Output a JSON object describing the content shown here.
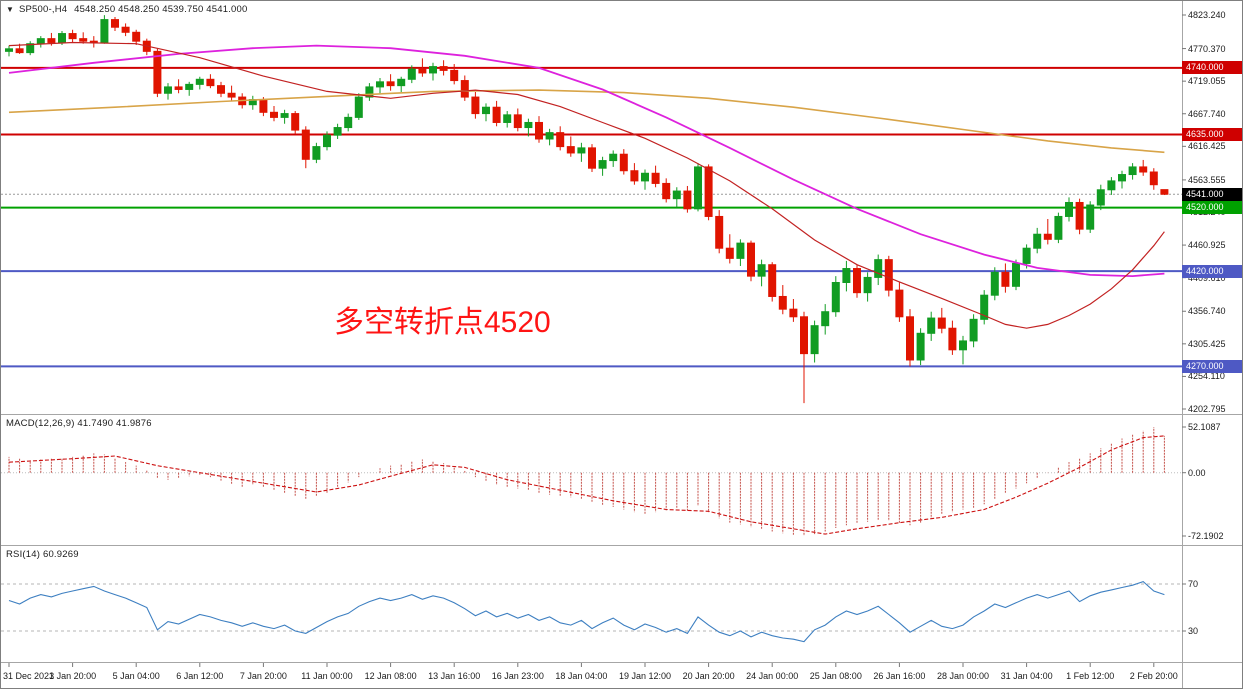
{
  "window": {
    "symbol_period": "SP500-,H4",
    "quote": "4548.250 4548.250 4539.750 4541.000"
  },
  "icons": {
    "marker": "▼"
  },
  "main_chart": {
    "y_ticks": [
      "4823.240",
      "4770.370",
      "4719.055",
      "4667.740",
      "4616.425",
      "4563.555",
      "4512.240",
      "4460.925",
      "4409.610",
      "4356.740",
      "4305.425",
      "4254.110",
      "4202.795"
    ],
    "price_lines": [
      {
        "price": 4740.0,
        "label": "4740.000",
        "color": "#cf0000"
      },
      {
        "price": 4635.0,
        "label": "4635.000",
        "color": "#cf0000"
      },
      {
        "price": 4520.0,
        "label": "4520.000",
        "color": "#00a100"
      },
      {
        "price": 4420.0,
        "label": "4420.000",
        "color": "#4e59c4"
      },
      {
        "price": 4270.0,
        "label": "4270.000",
        "color": "#4e59c4"
      }
    ],
    "current_price": {
      "value": 4541.0,
      "label": "4541.000",
      "badge_bg": "#000000",
      "line_color": "#9a9a9a"
    },
    "annotation": {
      "text": "多空转折点4520",
      "color": "#ff1414"
    }
  },
  "macd_panel": {
    "header": "MACD(12,26,9) 41.7490 41.9876",
    "ticks": [
      {
        "v": 52.1087,
        "label": "52.1087"
      },
      {
        "v": 0,
        "label": "0.00"
      },
      {
        "v": -72.1902,
        "label": "-72.1902"
      }
    ],
    "hist_color": "#c4504a",
    "signal_color": "#cc1111"
  },
  "rsi_panel": {
    "header": "RSI(14) 60.9269",
    "levels": [
      {
        "v": 70,
        "label": "70"
      },
      {
        "v": 30,
        "label": "30"
      }
    ],
    "line_color": "#3d7fc1"
  },
  "chart_data": {
    "type": "candlestick",
    "symbol": "SP500-",
    "timeframe": "H4",
    "title": "SP500-,H4 4548.250 4548.250 4539.750 4541.000",
    "current_ohlc": {
      "open": 4548.25,
      "high": 4548.25,
      "low": 4539.75,
      "close": 4541.0
    },
    "y_range": [
      4202.795,
      4823.24
    ],
    "up_color": "#119c22",
    "down_color": "#e01400",
    "x_labels": [
      "31 Dec 2021",
      "3 Jan 20:00",
      "5 Jan 04:00",
      "6 Jan 12:00",
      "7 Jan 20:00",
      "11 Jan 00:00",
      "12 Jan 08:00",
      "13 Jan 16:00",
      "16 Jan 23:00",
      "18 Jan 04:00",
      "19 Jan 12:00",
      "20 Jan 20:00",
      "24 Jan 00:00",
      "25 Jan 08:00",
      "26 Jan 16:00",
      "28 Jan 00:00",
      "31 Jan 04:00",
      "1 Feb 12:00",
      "2 Feb 20:00"
    ],
    "x_label_indices": [
      0,
      6,
      12,
      18,
      24,
      30,
      36,
      42,
      48,
      54,
      60,
      66,
      72,
      78,
      84,
      90,
      96,
      102,
      108
    ],
    "candles": [
      [
        4766,
        4775,
        4758,
        4770
      ],
      [
        4770,
        4778,
        4762,
        4764
      ],
      [
        4764,
        4782,
        4760,
        4778
      ],
      [
        4778,
        4790,
        4772,
        4786
      ],
      [
        4786,
        4795,
        4775,
        4780
      ],
      [
        4780,
        4798,
        4776,
        4794
      ],
      [
        4794,
        4800,
        4780,
        4786
      ],
      [
        4786,
        4796,
        4778,
        4782
      ],
      [
        4782,
        4790,
        4772,
        4780
      ],
      [
        4780,
        4823,
        4778,
        4816
      ],
      [
        4816,
        4820,
        4798,
        4804
      ],
      [
        4804,
        4810,
        4790,
        4796
      ],
      [
        4796,
        4800,
        4776,
        4782
      ],
      [
        4782,
        4786,
        4760,
        4766
      ],
      [
        4766,
        4770,
        4694,
        4700
      ],
      [
        4700,
        4716,
        4690,
        4710
      ],
      [
        4710,
        4722,
        4700,
        4706
      ],
      [
        4706,
        4718,
        4696,
        4714
      ],
      [
        4714,
        4726,
        4706,
        4722
      ],
      [
        4722,
        4730,
        4708,
        4712
      ],
      [
        4712,
        4718,
        4694,
        4700
      ],
      [
        4700,
        4712,
        4688,
        4694
      ],
      [
        4694,
        4700,
        4676,
        4682
      ],
      [
        4682,
        4696,
        4674,
        4690
      ],
      [
        4690,
        4694,
        4664,
        4670
      ],
      [
        4670,
        4680,
        4656,
        4662
      ],
      [
        4662,
        4674,
        4652,
        4668
      ],
      [
        4668,
        4672,
        4636,
        4642
      ],
      [
        4642,
        4648,
        4582,
        4596
      ],
      [
        4596,
        4622,
        4590,
        4616
      ],
      [
        4616,
        4640,
        4610,
        4634
      ],
      [
        4634,
        4652,
        4628,
        4646
      ],
      [
        4646,
        4668,
        4640,
        4662
      ],
      [
        4662,
        4700,
        4658,
        4694
      ],
      [
        4694,
        4716,
        4688,
        4710
      ],
      [
        4710,
        4724,
        4700,
        4718
      ],
      [
        4718,
        4730,
        4704,
        4712
      ],
      [
        4712,
        4726,
        4702,
        4722
      ],
      [
        4722,
        4744,
        4716,
        4738
      ],
      [
        4738,
        4755,
        4726,
        4732
      ],
      [
        4732,
        4748,
        4720,
        4742
      ],
      [
        4742,
        4752,
        4728,
        4736
      ],
      [
        4736,
        4746,
        4714,
        4720
      ],
      [
        4720,
        4728,
        4688,
        4694
      ],
      [
        4694,
        4702,
        4660,
        4668
      ],
      [
        4668,
        4684,
        4656,
        4678
      ],
      [
        4678,
        4688,
        4648,
        4654
      ],
      [
        4654,
        4672,
        4646,
        4666
      ],
      [
        4666,
        4676,
        4640,
        4646
      ],
      [
        4646,
        4660,
        4632,
        4654
      ],
      [
        4654,
        4664,
        4622,
        4628
      ],
      [
        4628,
        4644,
        4618,
        4638
      ],
      [
        4638,
        4648,
        4610,
        4616
      ],
      [
        4616,
        4632,
        4600,
        4606
      ],
      [
        4606,
        4622,
        4592,
        4614
      ],
      [
        4614,
        4620,
        4576,
        4582
      ],
      [
        4582,
        4600,
        4570,
        4594
      ],
      [
        4594,
        4610,
        4584,
        4604
      ],
      [
        4604,
        4612,
        4572,
        4578
      ],
      [
        4578,
        4590,
        4556,
        4562
      ],
      [
        4562,
        4580,
        4548,
        4574
      ],
      [
        4574,
        4586,
        4552,
        4558
      ],
      [
        4558,
        4566,
        4528,
        4534
      ],
      [
        4534,
        4552,
        4520,
        4546
      ],
      [
        4546,
        4554,
        4512,
        4518
      ],
      [
        4518,
        4590,
        4514,
        4584
      ],
      [
        4584,
        4588,
        4500,
        4506
      ],
      [
        4506,
        4516,
        4448,
        4456
      ],
      [
        4456,
        4478,
        4432,
        4440
      ],
      [
        4440,
        4470,
        4428,
        4464
      ],
      [
        4464,
        4468,
        4404,
        4412
      ],
      [
        4412,
        4438,
        4396,
        4430
      ],
      [
        4430,
        4434,
        4372,
        4380
      ],
      [
        4380,
        4398,
        4352,
        4360
      ],
      [
        4360,
        4376,
        4340,
        4348
      ],
      [
        4348,
        4356,
        4212,
        4290
      ],
      [
        4290,
        4342,
        4276,
        4334
      ],
      [
        4334,
        4368,
        4320,
        4356
      ],
      [
        4356,
        4412,
        4348,
        4402
      ],
      [
        4402,
        4436,
        4388,
        4424
      ],
      [
        4424,
        4430,
        4378,
        4386
      ],
      [
        4386,
        4418,
        4372,
        4410
      ],
      [
        4410,
        4446,
        4398,
        4438
      ],
      [
        4438,
        4444,
        4380,
        4390
      ],
      [
        4390,
        4402,
        4340,
        4348
      ],
      [
        4348,
        4360,
        4270,
        4280
      ],
      [
        4280,
        4330,
        4272,
        4322
      ],
      [
        4322,
        4356,
        4310,
        4346
      ],
      [
        4346,
        4362,
        4322,
        4330
      ],
      [
        4330,
        4342,
        4288,
        4296
      ],
      [
        4296,
        4318,
        4273,
        4310
      ],
      [
        4310,
        4352,
        4300,
        4344
      ],
      [
        4344,
        4390,
        4336,
        4382
      ],
      [
        4382,
        4426,
        4374,
        4418
      ],
      [
        4418,
        4432,
        4386,
        4396
      ],
      [
        4396,
        4438,
        4390,
        4432
      ],
      [
        4432,
        4462,
        4424,
        4456
      ],
      [
        4456,
        4488,
        4448,
        4478
      ],
      [
        4478,
        4502,
        4462,
        4470
      ],
      [
        4470,
        4512,
        4464,
        4506
      ],
      [
        4506,
        4536,
        4498,
        4528
      ],
      [
        4528,
        4534,
        4478,
        4486
      ],
      [
        4486,
        4530,
        4480,
        4524
      ],
      [
        4524,
        4556,
        4516,
        4548
      ],
      [
        4548,
        4568,
        4540,
        4562
      ],
      [
        4562,
        4578,
        4550,
        4572
      ],
      [
        4572,
        4590,
        4564,
        4584
      ],
      [
        4584,
        4595,
        4570,
        4576
      ],
      [
        4576,
        4582,
        4548,
        4556
      ],
      [
        4548.25,
        4548.25,
        4539.75,
        4541.0
      ]
    ],
    "overlays": [
      {
        "name": "ma-slow-orange",
        "color": "#d8a448",
        "points": [
          [
            0,
            4670
          ],
          [
            10,
            4678
          ],
          [
            20,
            4687
          ],
          [
            30,
            4695
          ],
          [
            40,
            4703
          ],
          [
            50,
            4705
          ],
          [
            58,
            4701
          ],
          [
            66,
            4692
          ],
          [
            74,
            4678
          ],
          [
            82,
            4661
          ],
          [
            90,
            4643
          ],
          [
            98,
            4625
          ],
          [
            104,
            4614
          ],
          [
            109,
            4607
          ]
        ]
      },
      {
        "name": "ma-medium-magenta",
        "color": "#dd22dd",
        "points": [
          [
            0,
            4732
          ],
          [
            8,
            4748
          ],
          [
            16,
            4762
          ],
          [
            23,
            4771
          ],
          [
            29,
            4775
          ],
          [
            36,
            4771
          ],
          [
            43,
            4759
          ],
          [
            50,
            4740
          ],
          [
            56,
            4706
          ],
          [
            62,
            4662
          ],
          [
            68,
            4614
          ],
          [
            74,
            4564
          ],
          [
            80,
            4518
          ],
          [
            86,
            4478
          ],
          [
            92,
            4446
          ],
          [
            97,
            4425
          ],
          [
            102,
            4414
          ],
          [
            106,
            4412
          ],
          [
            109,
            4416
          ]
        ]
      },
      {
        "name": "ma-fast-red",
        "color": "#c22222",
        "points": [
          [
            0,
            4775
          ],
          [
            6,
            4780
          ],
          [
            12,
            4778
          ],
          [
            18,
            4756
          ],
          [
            24,
            4727
          ],
          [
            30,
            4703
          ],
          [
            36,
            4692
          ],
          [
            40,
            4700
          ],
          [
            44,
            4705
          ],
          [
            48,
            4698
          ],
          [
            52,
            4679
          ],
          [
            56,
            4654
          ],
          [
            60,
            4629
          ],
          [
            64,
            4598
          ],
          [
            68,
            4562
          ],
          [
            72,
            4518
          ],
          [
            76,
            4469
          ],
          [
            80,
            4430
          ],
          [
            84,
            4403
          ],
          [
            88,
            4377
          ],
          [
            92,
            4350
          ],
          [
            94,
            4336
          ],
          [
            96,
            4330
          ],
          [
            98,
            4336
          ],
          [
            100,
            4350
          ],
          [
            102,
            4368
          ],
          [
            104,
            4392
          ],
          [
            106,
            4422
          ],
          [
            108,
            4460
          ],
          [
            109,
            4482
          ]
        ]
      }
    ],
    "macd": {
      "params": [
        12,
        26,
        9
      ],
      "main_value": 41.749,
      "signal_value": 41.9876,
      "range": [
        -72.1902,
        52.1087
      ],
      "histogram": [
        18,
        16,
        14,
        15,
        17,
        16,
        18,
        20,
        22,
        21,
        17,
        12,
        8,
        3,
        -6,
        -8,
        -6,
        -4,
        -3,
        -5,
        -9,
        -13,
        -16,
        -14,
        -17,
        -20,
        -24,
        -27,
        -30,
        -27,
        -23,
        -17,
        -11,
        -5,
        0,
        5,
        8,
        10,
        13,
        15,
        13,
        11,
        7,
        2,
        -5,
        -10,
        -14,
        -16,
        -18,
        -20,
        -23,
        -25,
        -27,
        -28,
        -30,
        -34,
        -37,
        -39,
        -42,
        -45,
        -47,
        -45,
        -43,
        -41,
        -44,
        -38,
        -45,
        -52,
        -57,
        -59,
        -62,
        -64,
        -67,
        -69,
        -71,
        -72,
        -70,
        -67,
        -63,
        -60,
        -58,
        -56,
        -54,
        -55,
        -58,
        -60,
        -57,
        -52,
        -48,
        -45,
        -42,
        -40,
        -36,
        -30,
        -24,
        -18,
        -12,
        -6,
        0,
        6,
        12,
        16,
        22,
        28,
        34,
        39,
        44,
        48,
        52,
        42
      ],
      "signal_points": [
        [
          0,
          12
        ],
        [
          6,
          16
        ],
        [
          10,
          19
        ],
        [
          14,
          8
        ],
        [
          18,
          0
        ],
        [
          24,
          -12
        ],
        [
          29,
          -22
        ],
        [
          33,
          -14
        ],
        [
          36,
          -4
        ],
        [
          40,
          9
        ],
        [
          43,
          6
        ],
        [
          47,
          -8
        ],
        [
          52,
          -20
        ],
        [
          57,
          -32
        ],
        [
          62,
          -42
        ],
        [
          66,
          -44
        ],
        [
          70,
          -56
        ],
        [
          74,
          -64
        ],
        [
          77,
          -70
        ],
        [
          80,
          -64
        ],
        [
          84,
          -57
        ],
        [
          88,
          -51
        ],
        [
          92,
          -42
        ],
        [
          95,
          -28
        ],
        [
          98,
          -12
        ],
        [
          101,
          6
        ],
        [
          104,
          26
        ],
        [
          107,
          40
        ],
        [
          109,
          42
        ]
      ]
    },
    "rsi": {
      "period": 14,
      "value": 60.9269,
      "levels": [
        70,
        30
      ],
      "values": [
        56,
        53,
        58,
        61,
        59,
        62,
        64,
        66,
        68,
        64,
        61,
        58,
        54,
        50,
        31,
        38,
        36,
        40,
        44,
        42,
        39,
        37,
        34,
        37,
        34,
        32,
        35,
        30,
        28,
        33,
        38,
        42,
        45,
        51,
        55,
        58,
        56,
        58,
        61,
        57,
        60,
        58,
        54,
        49,
        43,
        47,
        42,
        45,
        41,
        44,
        39,
        42,
        37,
        35,
        39,
        32,
        37,
        41,
        35,
        31,
        36,
        33,
        29,
        32,
        28,
        42,
        35,
        29,
        26,
        30,
        25,
        29,
        26,
        24,
        23,
        21,
        31,
        35,
        42,
        47,
        44,
        47,
        51,
        44,
        37,
        29,
        34,
        39,
        34,
        32,
        35,
        42,
        47,
        53,
        50,
        54,
        58,
        61,
        58,
        61,
        64,
        55,
        60,
        63,
        65,
        67,
        69,
        72,
        64,
        61
      ]
    }
  }
}
